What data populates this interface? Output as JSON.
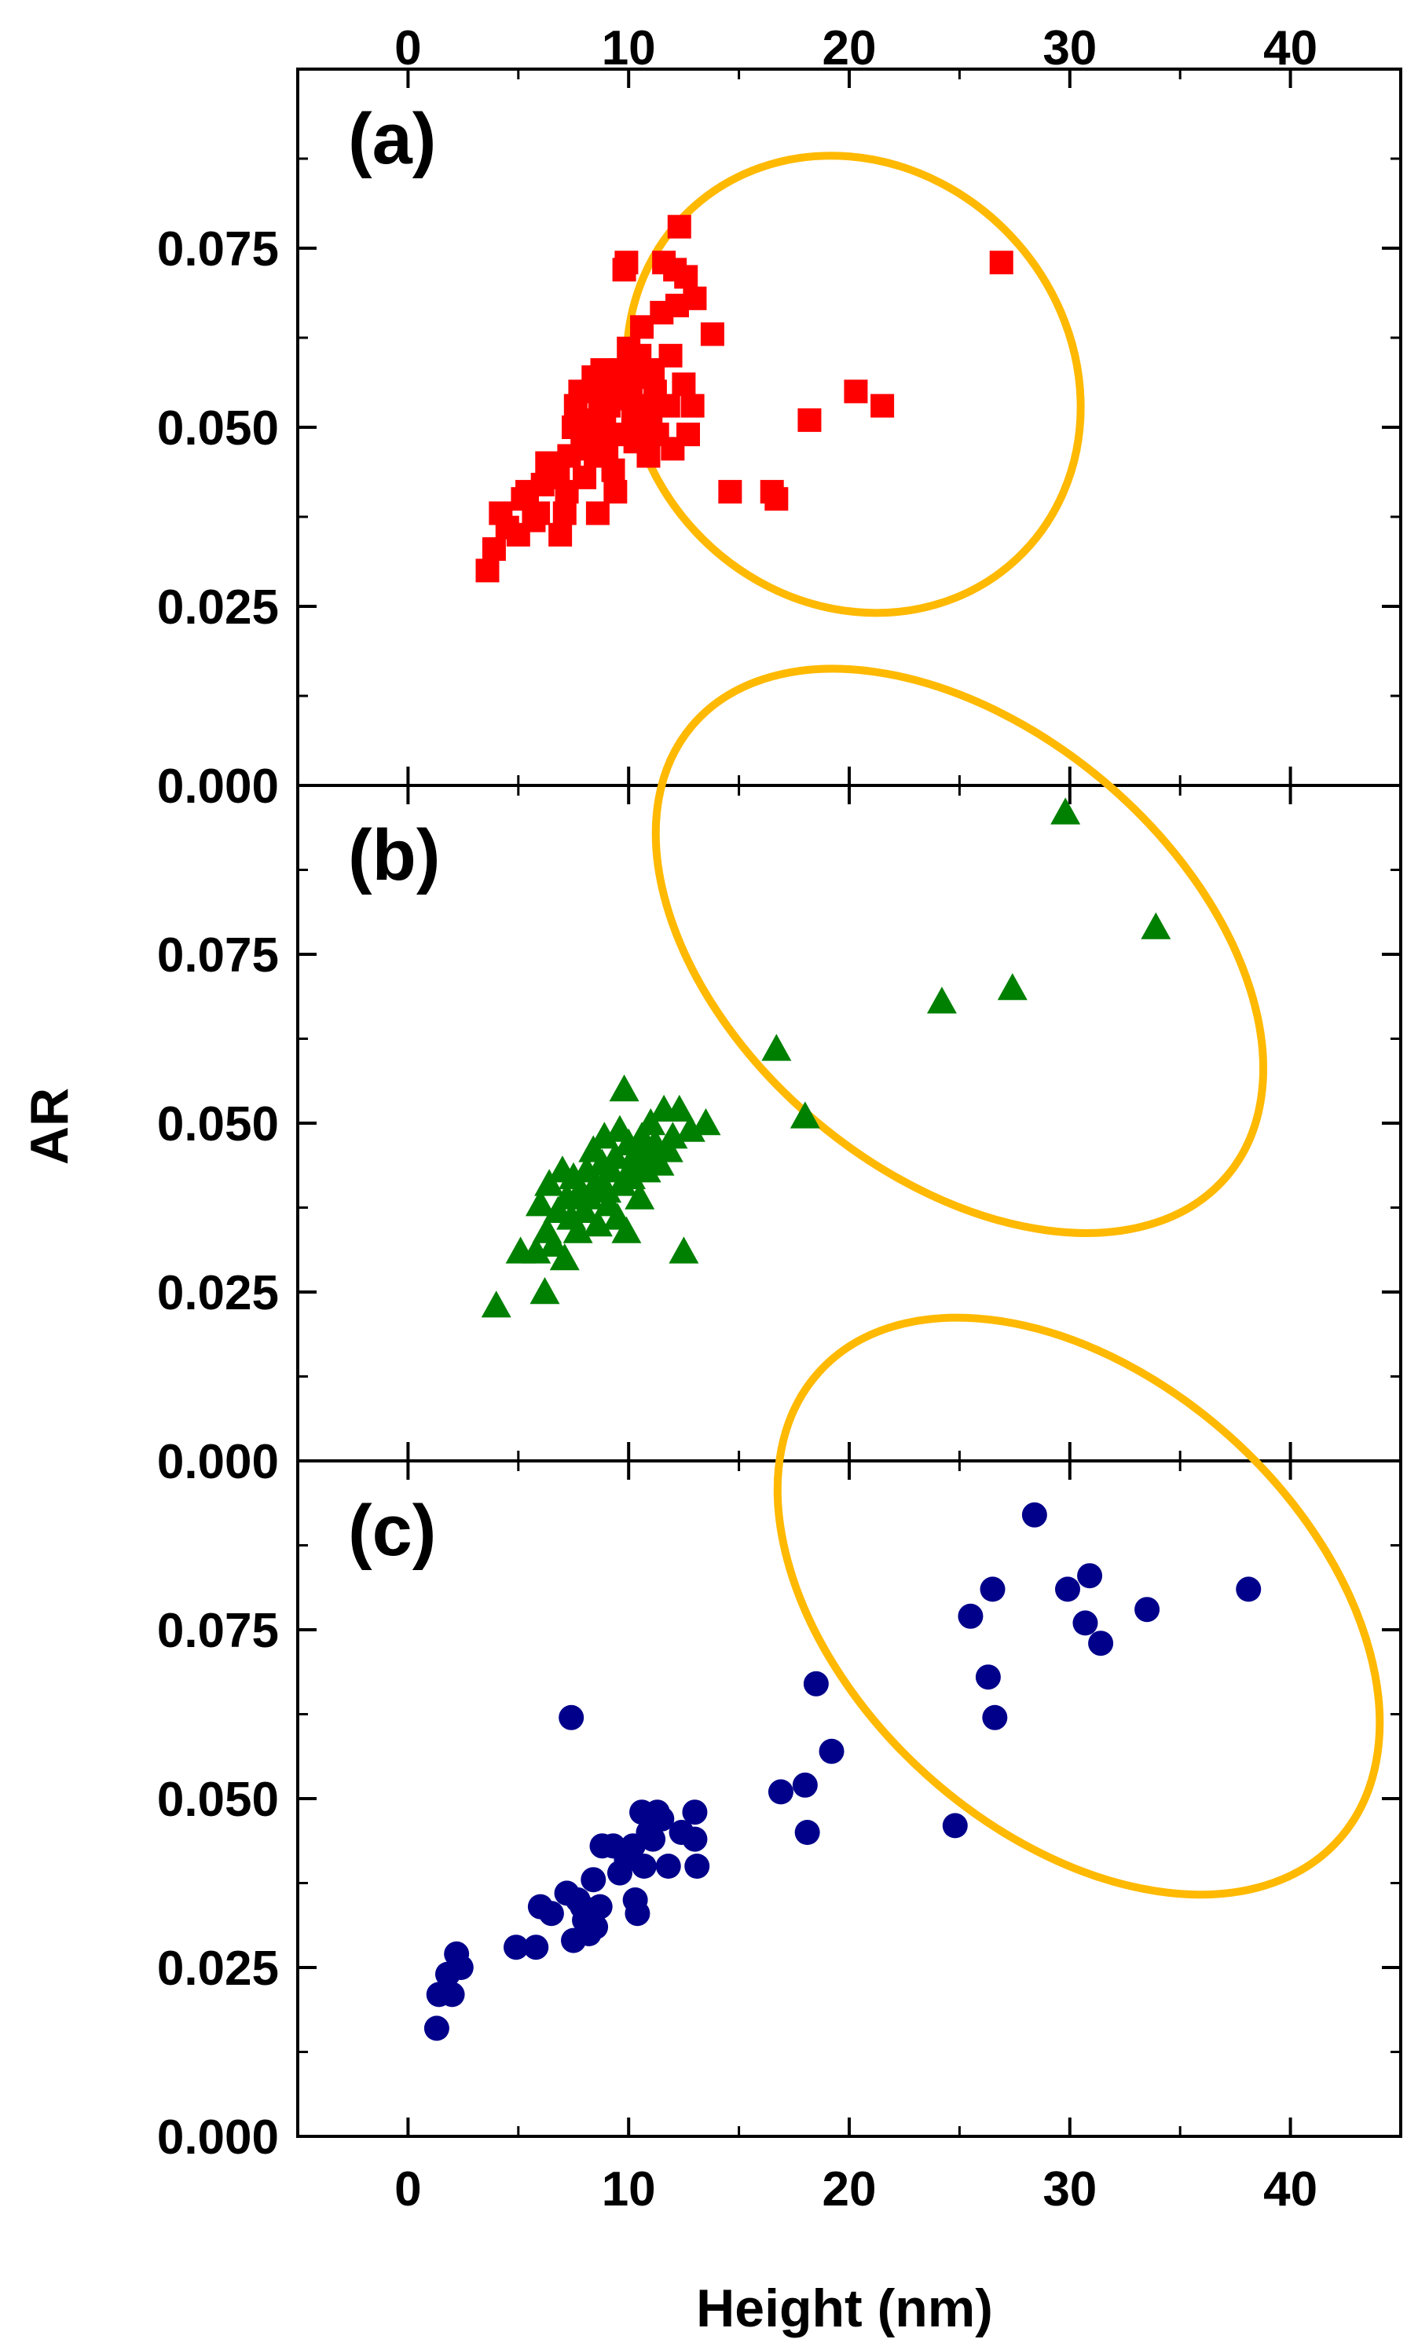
{
  "chart_data": {
    "type": "scatter",
    "xlabel": "Height (nm)",
    "ylabel": "AR",
    "xlim": [
      -5,
      45
    ],
    "x_ticks": [
      0,
      10,
      20,
      30,
      40
    ],
    "x_tick_labels": [
      "0",
      "10",
      "20",
      "30",
      "40"
    ],
    "highlight_color": "#FFB900",
    "panels": [
      {
        "label": "(a)",
        "marker": "square",
        "color": "#FF0000",
        "ylim": [
          0,
          0.1
        ],
        "y_ticks": [
          0.0,
          0.025,
          0.05,
          0.075
        ],
        "y_tick_labels": [
          "0.000",
          "0.025",
          "0.050",
          "0.075"
        ],
        "highlight_ellipse": {
          "cx": 20.2,
          "cy": 0.056,
          "rx": 9.8,
          "ry": 0.0145,
          "angle_deg": -43
        },
        "points": [
          [
            3.6,
            0.03
          ],
          [
            3.9,
            0.033
          ],
          [
            4.2,
            0.038
          ],
          [
            4.5,
            0.036
          ],
          [
            5.0,
            0.035
          ],
          [
            5.2,
            0.04
          ],
          [
            5.4,
            0.041
          ],
          [
            5.7,
            0.037
          ],
          [
            5.9,
            0.038
          ],
          [
            6.1,
            0.042
          ],
          [
            6.3,
            0.045
          ],
          [
            6.5,
            0.044
          ],
          [
            6.8,
            0.043
          ],
          [
            6.9,
            0.035
          ],
          [
            7.1,
            0.038
          ],
          [
            7.2,
            0.041
          ],
          [
            7.3,
            0.046
          ],
          [
            7.5,
            0.05
          ],
          [
            7.6,
            0.053
          ],
          [
            7.8,
            0.055
          ],
          [
            7.9,
            0.047
          ],
          [
            8.0,
            0.043
          ],
          [
            8.1,
            0.049
          ],
          [
            8.2,
            0.051
          ],
          [
            8.3,
            0.055
          ],
          [
            8.4,
            0.057
          ],
          [
            8.5,
            0.046
          ],
          [
            8.6,
            0.038
          ],
          [
            8.7,
            0.052
          ],
          [
            8.8,
            0.058
          ],
          [
            8.9,
            0.05
          ],
          [
            9.0,
            0.047
          ],
          [
            9.1,
            0.053
          ],
          [
            9.2,
            0.056
          ],
          [
            9.3,
            0.044
          ],
          [
            9.4,
            0.041
          ],
          [
            9.5,
            0.049
          ],
          [
            9.6,
            0.054
          ],
          [
            9.7,
            0.058
          ],
          [
            9.8,
            0.072
          ],
          [
            9.9,
            0.073
          ],
          [
            10.0,
            0.061
          ],
          [
            10.1,
            0.055
          ],
          [
            10.2,
            0.051
          ],
          [
            10.3,
            0.048
          ],
          [
            10.4,
            0.053
          ],
          [
            10.5,
            0.06
          ],
          [
            10.6,
            0.064
          ],
          [
            10.7,
            0.057
          ],
          [
            10.8,
            0.05
          ],
          [
            10.9,
            0.046
          ],
          [
            11.0,
            0.052
          ],
          [
            11.1,
            0.058
          ],
          [
            11.2,
            0.055
          ],
          [
            11.3,
            0.049
          ],
          [
            11.5,
            0.066
          ],
          [
            11.6,
            0.073
          ],
          [
            11.8,
            0.053
          ],
          [
            11.9,
            0.06
          ],
          [
            12.0,
            0.047
          ],
          [
            12.1,
            0.072
          ],
          [
            12.2,
            0.067
          ],
          [
            12.3,
            0.078
          ],
          [
            12.5,
            0.056
          ],
          [
            12.6,
            0.071
          ],
          [
            12.7,
            0.049
          ],
          [
            12.9,
            0.053
          ],
          [
            13.0,
            0.068
          ],
          [
            13.8,
            0.063
          ],
          [
            14.6,
            0.041
          ],
          [
            16.5,
            0.041
          ],
          [
            16.7,
            0.04
          ],
          [
            18.2,
            0.051
          ],
          [
            20.3,
            0.055
          ],
          [
            21.5,
            0.053
          ],
          [
            26.9,
            0.073
          ]
        ]
      },
      {
        "label": "(b)",
        "marker": "triangle",
        "color": "#008000",
        "ylim": [
          0,
          0.1
        ],
        "y_ticks": [
          0.0,
          0.025,
          0.05,
          0.075
        ],
        "y_tick_labels": [
          "0.000",
          "0.025",
          "0.050",
          "0.075"
        ],
        "highlight_ellipse": {
          "cx": 25.0,
          "cy": 0.0755,
          "rx": 10.1,
          "ry": 0.0225,
          "angle_deg": -50
        },
        "points": [
          [
            4.0,
            0.023
          ],
          [
            5.1,
            0.031
          ],
          [
            5.8,
            0.031
          ],
          [
            6.0,
            0.038
          ],
          [
            6.2,
            0.025
          ],
          [
            6.3,
            0.034
          ],
          [
            6.4,
            0.041
          ],
          [
            6.6,
            0.032
          ],
          [
            6.8,
            0.037
          ],
          [
            7.0,
            0.043
          ],
          [
            7.1,
            0.03
          ],
          [
            7.2,
            0.039
          ],
          [
            7.4,
            0.036
          ],
          [
            7.5,
            0.042
          ],
          [
            7.7,
            0.034
          ],
          [
            7.8,
            0.04
          ],
          [
            8.0,
            0.037
          ],
          [
            8.1,
            0.043
          ],
          [
            8.2,
            0.039
          ],
          [
            8.4,
            0.046
          ],
          [
            8.5,
            0.041
          ],
          [
            8.6,
            0.035
          ],
          [
            8.8,
            0.044
          ],
          [
            8.9,
            0.048
          ],
          [
            9.0,
            0.04
          ],
          [
            9.1,
            0.038
          ],
          [
            9.2,
            0.043
          ],
          [
            9.4,
            0.045
          ],
          [
            9.5,
            0.036
          ],
          [
            9.6,
            0.049
          ],
          [
            9.7,
            0.041
          ],
          [
            9.8,
            0.055
          ],
          [
            9.9,
            0.034
          ],
          [
            10.0,
            0.047
          ],
          [
            10.1,
            0.042
          ],
          [
            10.2,
            0.044
          ],
          [
            10.4,
            0.046
          ],
          [
            10.5,
            0.039
          ],
          [
            10.6,
            0.048
          ],
          [
            10.8,
            0.043
          ],
          [
            10.9,
            0.045
          ],
          [
            11.0,
            0.05
          ],
          [
            11.2,
            0.047
          ],
          [
            11.4,
            0.044
          ],
          [
            11.6,
            0.052
          ],
          [
            11.8,
            0.046
          ],
          [
            12.0,
            0.048
          ],
          [
            12.3,
            0.052
          ],
          [
            12.5,
            0.031
          ],
          [
            12.8,
            0.049
          ],
          [
            13.5,
            0.05
          ],
          [
            16.7,
            0.061
          ],
          [
            18.0,
            0.051
          ],
          [
            24.2,
            0.068
          ],
          [
            27.4,
            0.07
          ],
          [
            29.8,
            0.096
          ],
          [
            33.9,
            0.079
          ]
        ]
      },
      {
        "label": "(c)",
        "marker": "circle",
        "color": "#00008B",
        "ylim": [
          0,
          0.1
        ],
        "y_ticks": [
          0.0,
          0.025,
          0.05,
          0.075
        ],
        "y_tick_labels": [
          "0.000",
          "0.025",
          "0.050",
          "0.075"
        ],
        "highlight_ellipse": {
          "cx": 30.4,
          "cy": 0.0785,
          "rx": 10.3,
          "ry": 0.0225,
          "angle_deg": -48
        },
        "points": [
          [
            1.3,
            0.016
          ],
          [
            1.4,
            0.021
          ],
          [
            1.8,
            0.024
          ],
          [
            2.0,
            0.021
          ],
          [
            2.2,
            0.027
          ],
          [
            2.4,
            0.025
          ],
          [
            4.9,
            0.028
          ],
          [
            5.8,
            0.028
          ],
          [
            6.0,
            0.034
          ],
          [
            6.5,
            0.033
          ],
          [
            7.2,
            0.036
          ],
          [
            7.4,
            0.062
          ],
          [
            7.5,
            0.029
          ],
          [
            7.7,
            0.035
          ],
          [
            7.9,
            0.034
          ],
          [
            8.0,
            0.032
          ],
          [
            8.2,
            0.03
          ],
          [
            8.4,
            0.038
          ],
          [
            8.5,
            0.031
          ],
          [
            8.7,
            0.034
          ],
          [
            8.8,
            0.043
          ],
          [
            9.3,
            0.043
          ],
          [
            9.6,
            0.039
          ],
          [
            9.9,
            0.041
          ],
          [
            10.2,
            0.043
          ],
          [
            10.3,
            0.035
          ],
          [
            10.4,
            0.033
          ],
          [
            10.6,
            0.048
          ],
          [
            10.7,
            0.04
          ],
          [
            10.9,
            0.045
          ],
          [
            11.1,
            0.044
          ],
          [
            11.3,
            0.048
          ],
          [
            11.5,
            0.047
          ],
          [
            11.8,
            0.04
          ],
          [
            12.4,
            0.045
          ],
          [
            13.0,
            0.048
          ],
          [
            13.0,
            0.044
          ],
          [
            13.1,
            0.04
          ],
          [
            16.9,
            0.051
          ],
          [
            18.0,
            0.052
          ],
          [
            18.1,
            0.045
          ],
          [
            18.5,
            0.067
          ],
          [
            19.2,
            0.057
          ],
          [
            24.8,
            0.046
          ],
          [
            25.5,
            0.077
          ],
          [
            26.3,
            0.068
          ],
          [
            26.5,
            0.081
          ],
          [
            26.6,
            0.062
          ],
          [
            28.4,
            0.092
          ],
          [
            29.9,
            0.081
          ],
          [
            30.7,
            0.076
          ],
          [
            30.9,
            0.083
          ],
          [
            31.4,
            0.073
          ],
          [
            33.5,
            0.078
          ],
          [
            38.1,
            0.081
          ]
        ]
      }
    ]
  }
}
